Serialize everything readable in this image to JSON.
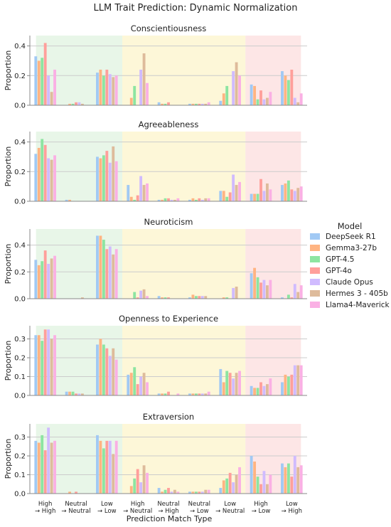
{
  "title": "LLM Trait Prediction: Dynamic Normalization",
  "xlabel": "Prediction Match Type",
  "ylabel": "Proportion",
  "legend_title": "Model",
  "colors": [
    "#a1c9f4",
    "#ffb482",
    "#8de5a1",
    "#ff9f9b",
    "#d0bbff",
    "#debb9b",
    "#fab0e4"
  ],
  "band_colors": [
    "#e8f6e8",
    "#fdf7d8",
    "#fde6e6"
  ],
  "categories": [
    "High\n→ High",
    "Neutral\n→ Neutral",
    "Low\n→ Low",
    "High\n→ Neutral",
    "Neutral\n→ High",
    "Neutral\n→ Low",
    "Low\n→ Neutral",
    "High\n→ Low",
    "Low\n→ High"
  ],
  "chart_data": [
    {
      "type": "bar",
      "title": "Conscientiousness",
      "ylim": [
        0,
        0.47
      ],
      "yticks": [
        "0.0",
        "0.2",
        "0.4"
      ],
      "grid": true,
      "series": [
        {
          "name": "DeepSeek R1",
          "values": [
            0.33,
            0.0,
            0.22,
            0.0,
            0.02,
            0.01,
            0.03,
            0.14,
            0.23
          ]
        },
        {
          "name": "Gemma3-27b",
          "values": [
            0.3,
            0.01,
            0.24,
            0.05,
            0.01,
            0.01,
            0.08,
            0.13,
            0.2
          ]
        },
        {
          "name": "GPT-4.5",
          "values": [
            0.32,
            0.01,
            0.2,
            0.13,
            0.01,
            0.01,
            0.13,
            0.04,
            0.17
          ]
        },
        {
          "name": "GPT-4o",
          "values": [
            0.42,
            0.02,
            0.24,
            0.0,
            0.02,
            0.01,
            0.0,
            0.1,
            0.24
          ]
        },
        {
          "name": "Claude Opus",
          "values": [
            0.2,
            0.02,
            0.21,
            0.24,
            0.0,
            0.01,
            0.23,
            0.04,
            0.05
          ]
        },
        {
          "name": "Hermes 3 - 405b",
          "values": [
            0.09,
            0.01,
            0.19,
            0.35,
            0.0,
            0.01,
            0.29,
            0.05,
            0.02
          ]
        },
        {
          "name": "Llama4-Maverick",
          "values": [
            0.24,
            0.0,
            0.2,
            0.15,
            0.0,
            0.02,
            0.2,
            0.09,
            0.08
          ]
        }
      ]
    },
    {
      "type": "bar",
      "title": "Agreeableness",
      "ylim": [
        0,
        0.47
      ],
      "yticks": [
        "0.0",
        "0.2",
        "0.4"
      ],
      "grid": true,
      "series": [
        {
          "name": "DeepSeek R1",
          "values": [
            0.32,
            0.01,
            0.3,
            0.11,
            0.01,
            0.01,
            0.07,
            0.05,
            0.11
          ]
        },
        {
          "name": "Gemma3-27b",
          "values": [
            0.36,
            0.01,
            0.29,
            0.03,
            0.01,
            0.02,
            0.07,
            0.05,
            0.12
          ]
        },
        {
          "name": "GPT-4.5",
          "values": [
            0.42,
            0.0,
            0.31,
            0.01,
            0.02,
            0.01,
            0.03,
            0.05,
            0.14
          ]
        },
        {
          "name": "GPT-4o",
          "values": [
            0.38,
            0.0,
            0.34,
            0.04,
            0.02,
            0.02,
            0.06,
            0.15,
            0.08
          ]
        },
        {
          "name": "Claude Opus",
          "values": [
            0.29,
            0.0,
            0.26,
            0.17,
            0.01,
            0.01,
            0.18,
            0.07,
            0.07
          ]
        },
        {
          "name": "Hermes 3 - 405b",
          "values": [
            0.28,
            0.0,
            0.37,
            0.11,
            0.01,
            0.02,
            0.11,
            0.12,
            0.09
          ]
        },
        {
          "name": "Llama4-Maverick",
          "values": [
            0.31,
            0.0,
            0.27,
            0.12,
            0.02,
            0.02,
            0.13,
            0.08,
            0.1
          ]
        }
      ]
    },
    {
      "type": "bar",
      "title": "Neuroticism",
      "ylim": [
        0,
        0.52
      ],
      "yticks": [
        "0.0",
        "0.2",
        "0.4"
      ],
      "grid": true,
      "series": [
        {
          "name": "DeepSeek R1",
          "values": [
            0.29,
            0.0,
            0.47,
            0.0,
            0.02,
            0.01,
            0.0,
            0.19,
            0.01
          ]
        },
        {
          "name": "Gemma3-27b",
          "values": [
            0.25,
            0.0,
            0.47,
            0.0,
            0.01,
            0.03,
            0.01,
            0.23,
            0.0
          ]
        },
        {
          "name": "GPT-4.5",
          "values": [
            0.28,
            0.0,
            0.44,
            0.05,
            0.01,
            0.02,
            0.01,
            0.16,
            0.03
          ]
        },
        {
          "name": "GPT-4o",
          "values": [
            0.36,
            0.0,
            0.37,
            0.01,
            0.01,
            0.02,
            0.0,
            0.12,
            0.01
          ]
        },
        {
          "name": "Claude Opus",
          "values": [
            0.26,
            0.0,
            0.39,
            0.06,
            0.0,
            0.02,
            0.08,
            0.14,
            0.11
          ]
        },
        {
          "name": "Hermes 3 - 405b",
          "values": [
            0.3,
            0.01,
            0.33,
            0.07,
            0.0,
            0.02,
            0.09,
            0.1,
            0.05
          ]
        },
        {
          "name": "Llama4-Maverick",
          "values": [
            0.32,
            0.0,
            0.37,
            0.02,
            0.0,
            0.0,
            0.0,
            0.14,
            0.1
          ]
        }
      ]
    },
    {
      "type": "bar",
      "title": "Openness to Experience",
      "ylim": [
        0,
        0.37
      ],
      "yticks": [
        "0.0",
        "0.1",
        "0.2",
        "0.3"
      ],
      "grid": true,
      "series": [
        {
          "name": "DeepSeek R1",
          "values": [
            0.32,
            0.02,
            0.27,
            0.11,
            0.01,
            0.01,
            0.14,
            0.05,
            0.07
          ]
        },
        {
          "name": "Gemma3-27b",
          "values": [
            0.32,
            0.02,
            0.3,
            0.12,
            0.01,
            0.01,
            0.07,
            0.04,
            0.11
          ]
        },
        {
          "name": "GPT-4.5",
          "values": [
            0.29,
            0.02,
            0.27,
            0.15,
            0.01,
            0.01,
            0.13,
            0.04,
            0.1
          ]
        },
        {
          "name": "GPT-4o",
          "values": [
            0.35,
            0.01,
            0.25,
            0.06,
            0.02,
            0.01,
            0.12,
            0.07,
            0.11
          ]
        },
        {
          "name": "Claude Opus",
          "values": [
            0.35,
            0.01,
            0.21,
            0.1,
            0.0,
            0.01,
            0.09,
            0.05,
            0.16
          ]
        },
        {
          "name": "Hermes 3 - 405b",
          "values": [
            0.3,
            0.01,
            0.25,
            0.12,
            0.0,
            0.01,
            0.12,
            0.06,
            0.16
          ]
        },
        {
          "name": "Llama4-Maverick",
          "values": [
            0.32,
            0.0,
            0.19,
            0.07,
            0.01,
            0.02,
            0.13,
            0.09,
            0.16
          ]
        }
      ]
    },
    {
      "type": "bar",
      "title": "Extraversion",
      "ylim": [
        0,
        0.37
      ],
      "yticks": [
        "0.0",
        "0.1",
        "0.2",
        "0.3"
      ],
      "grid": true,
      "series": [
        {
          "name": "DeepSeek R1",
          "values": [
            0.28,
            0.0,
            0.31,
            0.0,
            0.03,
            0.01,
            0.03,
            0.2,
            0.16
          ]
        },
        {
          "name": "Gemma3-27b",
          "values": [
            0.27,
            0.01,
            0.28,
            0.04,
            0.01,
            0.01,
            0.07,
            0.17,
            0.14
          ]
        },
        {
          "name": "GPT-4.5",
          "values": [
            0.31,
            0.0,
            0.24,
            0.08,
            0.02,
            0.01,
            0.08,
            0.09,
            0.16
          ]
        },
        {
          "name": "GPT-4o",
          "values": [
            0.23,
            0.01,
            0.28,
            0.13,
            0.03,
            0.01,
            0.11,
            0.05,
            0.09
          ]
        },
        {
          "name": "Claude Opus",
          "values": [
            0.35,
            0.0,
            0.28,
            0.06,
            0.01,
            0.01,
            0.06,
            0.12,
            0.2
          ]
        },
        {
          "name": "Hermes 3 - 405b",
          "values": [
            0.27,
            0.0,
            0.21,
            0.15,
            0.02,
            0.02,
            0.1,
            0.05,
            0.14
          ]
        },
        {
          "name": "Llama4-Maverick",
          "values": [
            0.28,
            0.0,
            0.28,
            0.11,
            0.01,
            0.02,
            0.14,
            0.1,
            0.15
          ]
        }
      ]
    }
  ]
}
